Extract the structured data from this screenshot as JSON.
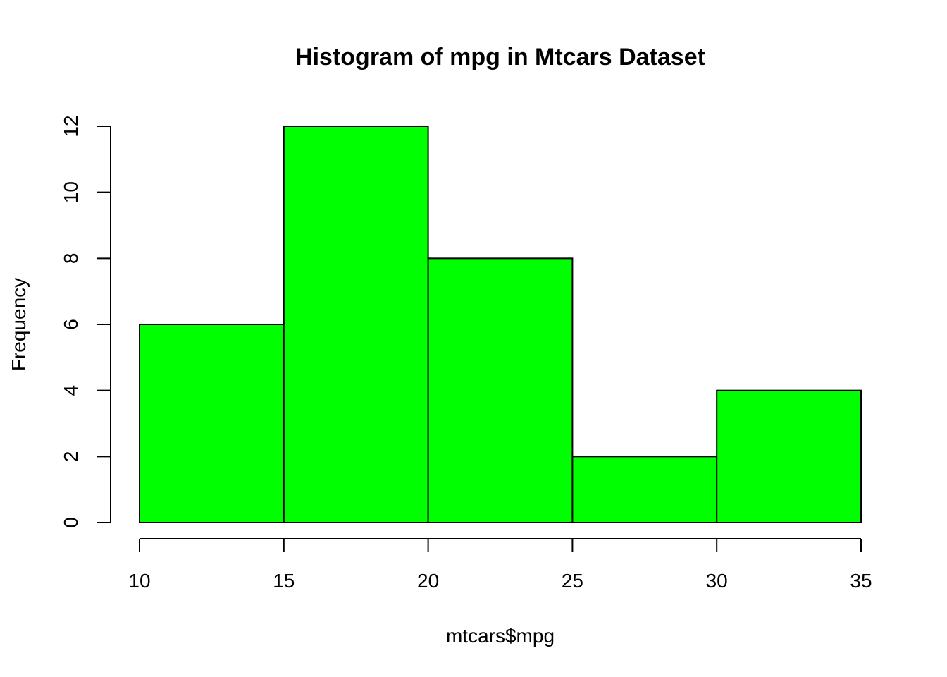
{
  "chart_data": {
    "type": "bar",
    "title": "Histogram of mpg in Mtcars Dataset",
    "xlabel": "mtcars$mpg",
    "ylabel": "Frequency",
    "bins": [
      {
        "start": 10,
        "end": 15,
        "count": 6
      },
      {
        "start": 15,
        "end": 20,
        "count": 12
      },
      {
        "start": 20,
        "end": 25,
        "count": 8
      },
      {
        "start": 25,
        "end": 30,
        "count": 2
      },
      {
        "start": 30,
        "end": 35,
        "count": 4
      }
    ],
    "xlim": [
      10,
      35
    ],
    "ylim": [
      0,
      12
    ],
    "x_ticks": [
      10,
      15,
      20,
      25,
      30,
      35
    ],
    "y_ticks": [
      0,
      2,
      4,
      6,
      8,
      10,
      12
    ],
    "bar_color": "#00ff00",
    "border_color": "#000000",
    "grid": false
  }
}
